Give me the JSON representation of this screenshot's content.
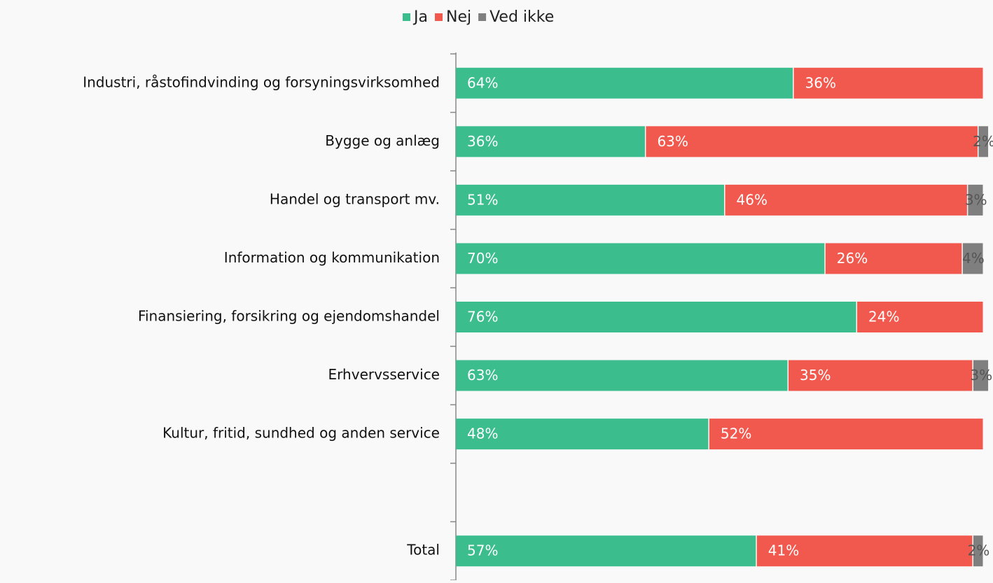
{
  "chart_data": {
    "type": "stacked-bar-horizontal",
    "categories": [
      "Industri, råstofindvinding og forsyningsvirksomhed",
      "Bygge og anlæg",
      "Handel og transport mv.",
      "Information og kommunikation",
      "Finansiering, forsikring og ejendomshandel",
      "Erhvervsservice",
      "Kultur, fritid, sundhed og anden service",
      null,
      "Total"
    ],
    "series": [
      {
        "name": "Ja",
        "color": "#3cbd8e",
        "values": [
          64,
          36,
          51,
          70,
          76,
          63,
          48,
          null,
          57
        ],
        "value_labels": [
          "64%",
          "36%",
          "51%",
          "70%",
          "76%",
          "63%",
          "48%",
          null,
          "57%"
        ]
      },
      {
        "name": "Nej",
        "color": "#f1594e",
        "values": [
          36,
          63,
          46,
          26,
          24,
          35,
          52,
          null,
          41
        ],
        "value_labels": [
          "36%",
          "63%",
          "46%",
          "26%",
          "24%",
          "35%",
          "52%",
          null,
          "41%"
        ]
      },
      {
        "name": "Ved ikke",
        "color": "#7f7f7f",
        "values": [
          null,
          2,
          3,
          4,
          null,
          3,
          null,
          null,
          2
        ],
        "value_labels": [
          null,
          "2%",
          "3%",
          "4%",
          null,
          "3%",
          null,
          null,
          "2%"
        ]
      }
    ],
    "xlim": [
      0,
      100
    ],
    "legend": "top"
  }
}
